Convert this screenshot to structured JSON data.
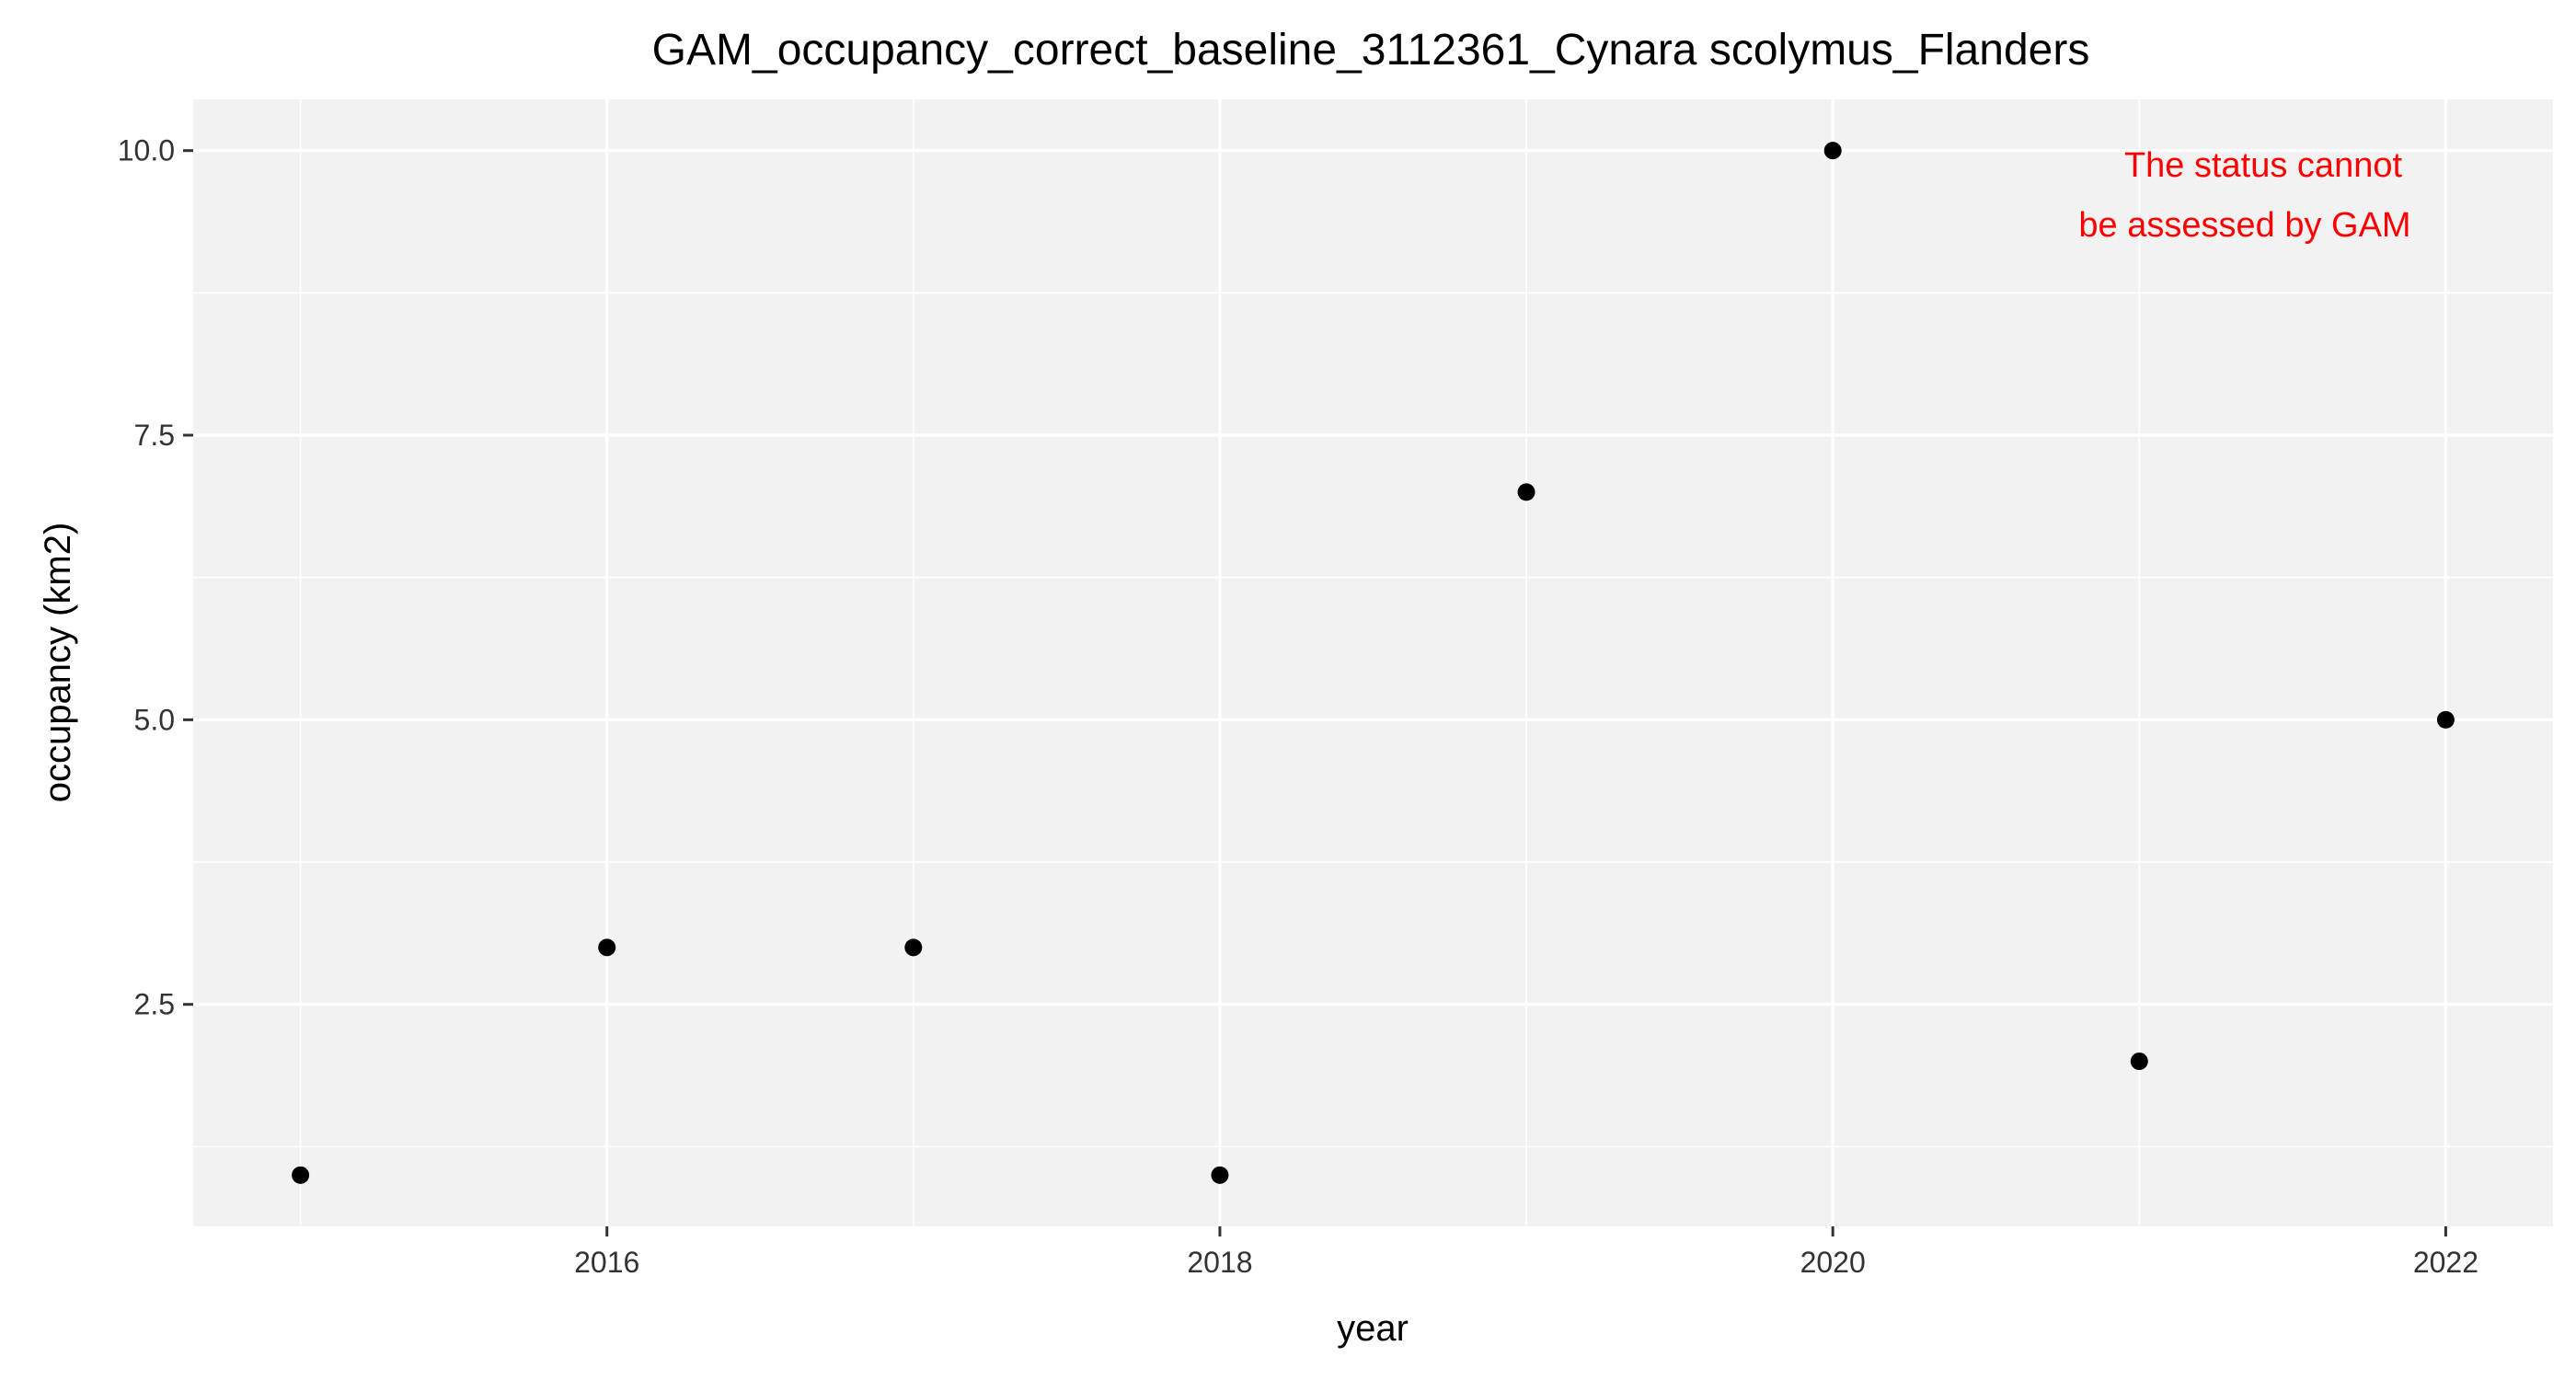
{
  "chart_data": {
    "type": "scatter",
    "title": "GAM_occupancy_correct_baseline_3112361_Cynara scolymus_Flanders",
    "xlabel": "year",
    "ylabel": "occupancy (km2)",
    "x": [
      2015,
      2016,
      2017,
      2018,
      2019,
      2020,
      2021,
      2022
    ],
    "y": [
      1,
      3,
      3,
      1,
      7,
      10,
      2,
      5
    ],
    "xlim": [
      2014.65,
      2022.35
    ],
    "ylim": [
      0.55,
      10.45
    ],
    "x_ticks": [
      2016,
      2018,
      2020,
      2022
    ],
    "x_tick_labels": [
      "2016",
      "2018",
      "2020",
      "2022"
    ],
    "y_ticks": [
      2.5,
      5.0,
      7.5,
      10.0
    ],
    "y_tick_labels": [
      "2.5",
      "5.0",
      "7.5",
      "10.0"
    ],
    "grid": true,
    "annotation": {
      "lines": [
        "The status cannot",
        "be assessed by GAM"
      ],
      "color": "#ff0000"
    },
    "colors": {
      "panel_background": "#f2f2f2",
      "grid": "#ffffff",
      "point": "#000000"
    }
  }
}
